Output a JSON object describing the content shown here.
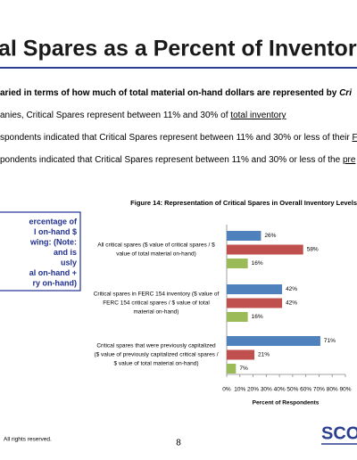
{
  "slide": {
    "title": "al Spares as a Percent of Inventory $ V",
    "bullets": [
      [
        "aried in terms of how much of total material on-hand dollars are represented by ",
        "Cri"
      ],
      [
        "anies, Critical Spares represent between 11% and 30% of ",
        "total inventory"
      ],
      [
        "spondents indicated that Critical Spares represent between 11% and 30% or less of their ",
        "FE"
      ],
      [
        "pondents indicated that Critical Spares represent between 11% and 30% or less of the ",
        "pre"
      ]
    ],
    "box": [
      "ercentage of",
      "l on-hand $",
      "wing:  (Note:",
      "and is",
      "usly",
      "al on-hand +",
      "ry on-hand)"
    ],
    "footer": "All rights reserved.",
    "page": "8",
    "logo": "SCO"
  },
  "chart_data": {
    "type": "hbar",
    "title": "Figure 14:  Representation of Critical Spares in Overall Inventory Levels",
    "categories": [
      [
        "All critical spares ($ value of critical spares / $",
        "value of total material on-hand)"
      ],
      [
        "Critical spares in FERC 154 inventory ($ value of",
        "FERC 154 critical spares / $ value of total",
        "material on-hand)"
      ],
      [
        "Critical spares that were previously capitalized",
        "($ value of previously capitalized critical spares /",
        "$ value of total material on-hand)"
      ]
    ],
    "series": [
      {
        "color": "#4f81bd",
        "values": [
          26,
          42,
          71
        ],
        "value_labels": [
          "26%",
          "42%",
          "71%"
        ]
      },
      {
        "color": "#c0504d",
        "values": [
          58,
          42,
          21
        ],
        "value_labels": [
          "58%",
          "42%",
          "21%"
        ]
      },
      {
        "color": "#9bbb59",
        "values": [
          16,
          16,
          7
        ],
        "value_labels": [
          "16%",
          "16%",
          "7%"
        ]
      }
    ],
    "xlabel": "Percent of Respondents",
    "xlim": [
      0,
      90
    ],
    "xticks": [
      {
        "value": 0,
        "label": "0%"
      },
      {
        "value": 10,
        "label": "10%"
      },
      {
        "value": 20,
        "label": "20%"
      },
      {
        "value": 30,
        "label": "30%"
      },
      {
        "value": 40,
        "label": "40%"
      },
      {
        "value": 50,
        "label": "50%"
      },
      {
        "value": 60,
        "label": "60%"
      },
      {
        "value": 70,
        "label": "70%"
      },
      {
        "value": 80,
        "label": "80%"
      },
      {
        "value": 90,
        "label": "90%"
      }
    ]
  }
}
